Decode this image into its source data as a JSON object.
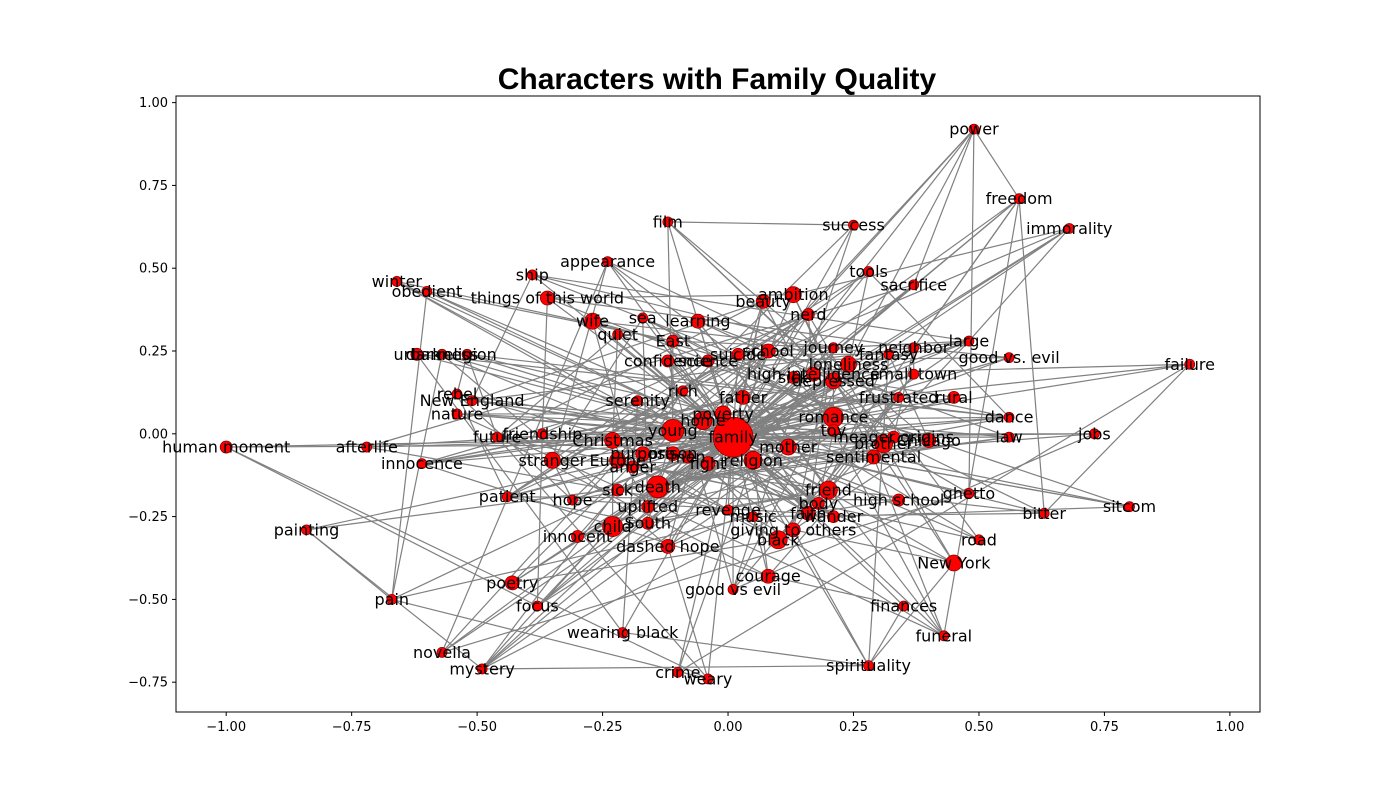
{
  "chart_data": {
    "type": "network",
    "title": "Characters with Family Quality",
    "xlim": [
      -1.1,
      1.06
    ],
    "ylim": [
      -0.84,
      1.02
    ],
    "xticks": [
      -1.0,
      -0.75,
      -0.5,
      -0.25,
      0.0,
      0.25,
      0.5,
      0.75,
      1.0
    ],
    "xtick_labels": [
      "−1.00",
      "−0.75",
      "−0.50",
      "−0.25",
      "0.00",
      "0.25",
      "0.50",
      "0.75",
      "1.00"
    ],
    "yticks": [
      -0.75,
      -0.5,
      -0.25,
      0.0,
      0.25,
      0.5,
      0.75,
      1.0
    ],
    "ytick_labels": [
      "−0.75",
      "−0.50",
      "−0.25",
      "0.00",
      "0.25",
      "0.50",
      "0.75",
      "1.00"
    ],
    "colors": {
      "node": "#ff0000",
      "node_edge": "#8b0000",
      "edge": "#808080"
    },
    "hub": "family",
    "nodes": [
      {
        "label": "family",
        "x": 0.01,
        "y": -0.01,
        "size": 20
      },
      {
        "label": "power",
        "x": 0.49,
        "y": 0.92,
        "size": 5
      },
      {
        "label": "freedom",
        "x": 0.58,
        "y": 0.71,
        "size": 5
      },
      {
        "label": "immorality",
        "x": 0.68,
        "y": 0.62,
        "size": 5
      },
      {
        "label": "success",
        "x": 0.25,
        "y": 0.63,
        "size": 5
      },
      {
        "label": "film",
        "x": -0.12,
        "y": 0.64,
        "size": 5
      },
      {
        "label": "appearance",
        "x": -0.24,
        "y": 0.52,
        "size": 5
      },
      {
        "label": "ship",
        "x": -0.39,
        "y": 0.48,
        "size": 5
      },
      {
        "label": "winter",
        "x": -0.66,
        "y": 0.46,
        "size": 5
      },
      {
        "label": "obedient",
        "x": -0.6,
        "y": 0.43,
        "size": 5
      },
      {
        "label": "things of this world",
        "x": -0.36,
        "y": 0.41,
        "size": 7
      },
      {
        "label": "tools",
        "x": 0.28,
        "y": 0.49,
        "size": 5
      },
      {
        "label": "sacrifice",
        "x": 0.37,
        "y": 0.45,
        "size": 5
      },
      {
        "label": "beauty",
        "x": 0.07,
        "y": 0.4,
        "size": 7
      },
      {
        "label": "ambition",
        "x": 0.13,
        "y": 0.42,
        "size": 8
      },
      {
        "label": "nerd",
        "x": 0.16,
        "y": 0.36,
        "size": 6
      },
      {
        "label": "wife",
        "x": -0.27,
        "y": 0.34,
        "size": 8
      },
      {
        "label": "sea",
        "x": -0.17,
        "y": 0.35,
        "size": 5
      },
      {
        "label": "learning",
        "x": -0.06,
        "y": 0.34,
        "size": 7
      },
      {
        "label": "quiet",
        "x": -0.22,
        "y": 0.3,
        "size": 5
      },
      {
        "label": "East",
        "x": -0.11,
        "y": 0.28,
        "size": 6
      },
      {
        "label": "school",
        "x": 0.08,
        "y": 0.25,
        "size": 7
      },
      {
        "label": "suicide",
        "x": 0.02,
        "y": 0.24,
        "size": 6
      },
      {
        "label": "journey",
        "x": 0.21,
        "y": 0.26,
        "size": 5
      },
      {
        "label": "neighbor",
        "x": 0.37,
        "y": 0.26,
        "size": 5
      },
      {
        "label": "fantasy",
        "x": 0.32,
        "y": 0.24,
        "size": 5
      },
      {
        "label": "large",
        "x": 0.48,
        "y": 0.28,
        "size": 5
      },
      {
        "label": "good vs. evil",
        "x": 0.56,
        "y": 0.23,
        "size": 5
      },
      {
        "label": "failure",
        "x": 0.92,
        "y": 0.21,
        "size": 5
      },
      {
        "label": "urban",
        "x": -0.62,
        "y": 0.24,
        "size": 6
      },
      {
        "label": "darkness",
        "x": -0.57,
        "y": 0.24,
        "size": 5
      },
      {
        "label": "religion",
        "x": -0.52,
        "y": 0.24,
        "size": 5
      },
      {
        "label": "confidence",
        "x": -0.12,
        "y": 0.22,
        "size": 6
      },
      {
        "label": "science",
        "x": -0.04,
        "y": 0.22,
        "size": 6
      },
      {
        "label": "loneliness",
        "x": 0.24,
        "y": 0.21,
        "size": 8
      },
      {
        "label": "high intelligence",
        "x": 0.17,
        "y": 0.18,
        "size": 7
      },
      {
        "label": "small town",
        "x": 0.37,
        "y": 0.18,
        "size": 5
      },
      {
        "label": "depressed",
        "x": 0.21,
        "y": 0.16,
        "size": 8
      },
      {
        "label": "sick",
        "x": 0.13,
        "y": 0.17,
        "size": 6
      },
      {
        "label": "rich",
        "x": -0.09,
        "y": 0.13,
        "size": 5
      },
      {
        "label": "rebel",
        "x": -0.54,
        "y": 0.12,
        "size": 5
      },
      {
        "label": "New England",
        "x": -0.51,
        "y": 0.1,
        "size": 5
      },
      {
        "label": "serenity",
        "x": -0.18,
        "y": 0.1,
        "size": 5
      },
      {
        "label": "father",
        "x": 0.03,
        "y": 0.11,
        "size": 7
      },
      {
        "label": "frustrated",
        "x": 0.34,
        "y": 0.11,
        "size": 5
      },
      {
        "label": "rural",
        "x": 0.45,
        "y": 0.11,
        "size": 6
      },
      {
        "label": "nature",
        "x": -0.54,
        "y": 0.06,
        "size": 5
      },
      {
        "label": "poverty",
        "x": -0.01,
        "y": 0.06,
        "size": 8
      },
      {
        "label": "romance",
        "x": 0.21,
        "y": 0.05,
        "size": 10
      },
      {
        "label": "dance",
        "x": 0.56,
        "y": 0.05,
        "size": 5
      },
      {
        "label": "home",
        "x": -0.05,
        "y": 0.04,
        "size": 9
      },
      {
        "label": "young",
        "x": -0.11,
        "y": 0.01,
        "size": 11
      },
      {
        "label": "toy",
        "x": 0.21,
        "y": 0.01,
        "size": 6
      },
      {
        "label": "friendship",
        "x": -0.37,
        "y": 0.0,
        "size": 5
      },
      {
        "label": "future",
        "x": -0.46,
        "y": -0.01,
        "size": 5
      },
      {
        "label": "Christmas",
        "x": -0.23,
        "y": -0.02,
        "size": 8
      },
      {
        "label": "meager origins",
        "x": 0.33,
        "y": -0.01,
        "size": 6
      },
      {
        "label": "law",
        "x": 0.56,
        "y": -0.01,
        "size": 5
      },
      {
        "label": "jobs",
        "x": 0.73,
        "y": 0.0,
        "size": 5
      },
      {
        "label": "brother",
        "x": 0.31,
        "y": -0.03,
        "size": 9
      },
      {
        "label": "Chicago",
        "x": 0.4,
        "y": -0.02,
        "size": 7
      },
      {
        "label": "human moment",
        "x": -1.0,
        "y": -0.04,
        "size": 6
      },
      {
        "label": "afterlife",
        "x": -0.72,
        "y": -0.04,
        "size": 5
      },
      {
        "label": "mother",
        "x": 0.12,
        "y": -0.04,
        "size": 8
      },
      {
        "label": "prison",
        "x": -0.11,
        "y": -0.06,
        "size": 7
      },
      {
        "label": "purpose",
        "x": -0.17,
        "y": -0.06,
        "size": 7
      },
      {
        "label": "sentimental",
        "x": 0.29,
        "y": -0.07,
        "size": 7
      },
      {
        "label": "stranger",
        "x": -0.35,
        "y": -0.08,
        "size": 8
      },
      {
        "label": "Europe",
        "x": -0.22,
        "y": -0.08,
        "size": 8
      },
      {
        "label": "religion",
        "x": 0.05,
        "y": -0.08,
        "size": 9
      },
      {
        "label": "men",
        "x": -0.08,
        "y": -0.07,
        "size": 6
      },
      {
        "label": "innocence",
        "x": -0.61,
        "y": -0.09,
        "size": 5
      },
      {
        "label": "anger",
        "x": -0.19,
        "y": -0.1,
        "size": 6
      },
      {
        "label": "fight",
        "x": -0.04,
        "y": -0.09,
        "size": 7
      },
      {
        "label": "death",
        "x": -0.14,
        "y": -0.16,
        "size": 11
      },
      {
        "label": "friend",
        "x": 0.2,
        "y": -0.17,
        "size": 9
      },
      {
        "label": "sick",
        "x": -0.22,
        "y": -0.17,
        "size": 6
      },
      {
        "label": "ghetto",
        "x": 0.48,
        "y": -0.18,
        "size": 5
      },
      {
        "label": "patient",
        "x": -0.44,
        "y": -0.19,
        "size": 5
      },
      {
        "label": "hope",
        "x": -0.31,
        "y": -0.2,
        "size": 5
      },
      {
        "label": "high school",
        "x": 0.34,
        "y": -0.2,
        "size": 6
      },
      {
        "label": "body",
        "x": 0.18,
        "y": -0.21,
        "size": 6
      },
      {
        "label": "uplifted",
        "x": -0.16,
        "y": -0.22,
        "size": 6
      },
      {
        "label": "revenge",
        "x": 0.0,
        "y": -0.23,
        "size": 5
      },
      {
        "label": "music",
        "x": 0.05,
        "y": -0.25,
        "size": 5
      },
      {
        "label": "faith",
        "x": 0.16,
        "y": -0.24,
        "size": 7
      },
      {
        "label": "wander",
        "x": 0.21,
        "y": -0.25,
        "size": 6
      },
      {
        "label": "bitter",
        "x": 0.63,
        "y": -0.24,
        "size": 5
      },
      {
        "label": "sitcom",
        "x": 0.8,
        "y": -0.22,
        "size": 5
      },
      {
        "label": "painting",
        "x": -0.84,
        "y": -0.29,
        "size": 5
      },
      {
        "label": "South",
        "x": -0.16,
        "y": -0.27,
        "size": 6
      },
      {
        "label": "child",
        "x": -0.23,
        "y": -0.28,
        "size": 10
      },
      {
        "label": "giving to others",
        "x": 0.13,
        "y": -0.29,
        "size": 7
      },
      {
        "label": "innocent",
        "x": -0.3,
        "y": -0.31,
        "size": 6
      },
      {
        "label": "black",
        "x": 0.1,
        "y": -0.32,
        "size": 9
      },
      {
        "label": "road",
        "x": 0.5,
        "y": -0.32,
        "size": 5
      },
      {
        "label": "dashed hope",
        "x": -0.12,
        "y": -0.34,
        "size": 7
      },
      {
        "label": "New York",
        "x": 0.45,
        "y": -0.39,
        "size": 8
      },
      {
        "label": "courage",
        "x": 0.08,
        "y": -0.43,
        "size": 7
      },
      {
        "label": "poetry",
        "x": -0.43,
        "y": -0.45,
        "size": 7
      },
      {
        "label": "good vs evil",
        "x": 0.01,
        "y": -0.47,
        "size": 5
      },
      {
        "label": "pain",
        "x": -0.67,
        "y": -0.5,
        "size": 5
      },
      {
        "label": "focus",
        "x": -0.38,
        "y": -0.52,
        "size": 5
      },
      {
        "label": "finances",
        "x": 0.35,
        "y": -0.52,
        "size": 5
      },
      {
        "label": "wearing black",
        "x": -0.21,
        "y": -0.6,
        "size": 5
      },
      {
        "label": "funeral",
        "x": 0.43,
        "y": -0.61,
        "size": 5
      },
      {
        "label": "novella",
        "x": -0.57,
        "y": -0.66,
        "size": 5
      },
      {
        "label": "mystery",
        "x": -0.49,
        "y": -0.71,
        "size": 5
      },
      {
        "label": "spirituality",
        "x": 0.28,
        "y": -0.7,
        "size": 5
      },
      {
        "label": "crime",
        "x": -0.1,
        "y": -0.72,
        "size": 5
      },
      {
        "label": "weary",
        "x": -0.04,
        "y": -0.74,
        "size": 5
      }
    ]
  }
}
